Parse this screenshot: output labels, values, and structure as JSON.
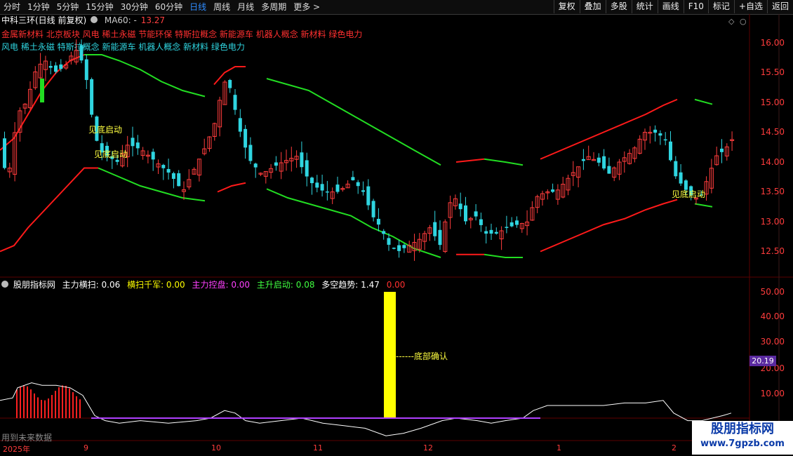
{
  "toolbar": {
    "timeframes": [
      "分时",
      "1分钟",
      "5分钟",
      "15分钟",
      "30分钟",
      "60分钟",
      "日线",
      "周线",
      "月线",
      "多周期",
      "更多"
    ],
    "more_arrow": ">",
    "right_buttons": [
      "复权",
      "叠加",
      "多股",
      "统计",
      "画线",
      "F10",
      "标记",
      "+自选",
      "返回"
    ]
  },
  "stock": {
    "title": "中科三环(日线 前复权)",
    "ma_label": "MA60: -",
    "ma_value": "13.27"
  },
  "concepts": {
    "line1": "金属新材料 北京板块 风电 稀土永磁 节能环保 特斯拉概念 新能源车 机器人概念 新材料 绿色电力",
    "line2": "风电 稀土永磁 特斯拉概念 新能源车 机器人概念 新材料 绿色电力"
  },
  "price_axis": [
    "16.00",
    "15.50",
    "15.00",
    "14.50",
    "14.00",
    "13.50",
    "13.00",
    "12.50"
  ],
  "annotations": {
    "a1": "见底启动",
    "a2": "见底启动",
    "a3": "见底启动",
    "bottom_confirm": "------底部确认"
  },
  "indicator": {
    "name": "股朋指标网",
    "items": [
      {
        "label": "主力横扫: 0.06",
        "color": "#ffffff"
      },
      {
        "label": "横扫千军: 0.00",
        "color": "#ffff00"
      },
      {
        "label": "主力控盘: 0.00",
        "color": "#ff40ff"
      },
      {
        "label": "主升启动: 0.08",
        "color": "#40ff40"
      },
      {
        "label": "多空趋势: 1.47",
        "color": "#ffffff"
      },
      {
        "label": "0.00",
        "color": "#ff3030"
      }
    ],
    "axis": [
      "50.00",
      "40.00",
      "30.00",
      "20.00",
      "10.00"
    ],
    "price_tag": "20.19",
    "no_future": "用到未来数据"
  },
  "dates": [
    "2025年",
    "9",
    "10",
    "11",
    "12",
    "1",
    "2"
  ],
  "watermark": {
    "line1": "股朋指标网",
    "line2": "www.7gpzb.com"
  },
  "colors": {
    "up": "#ff3c3c",
    "down": "#2fd5e0",
    "band_green": "#22dd22",
    "band_red": "#ff1a1a",
    "signal_yellow": "#ffff00"
  }
}
